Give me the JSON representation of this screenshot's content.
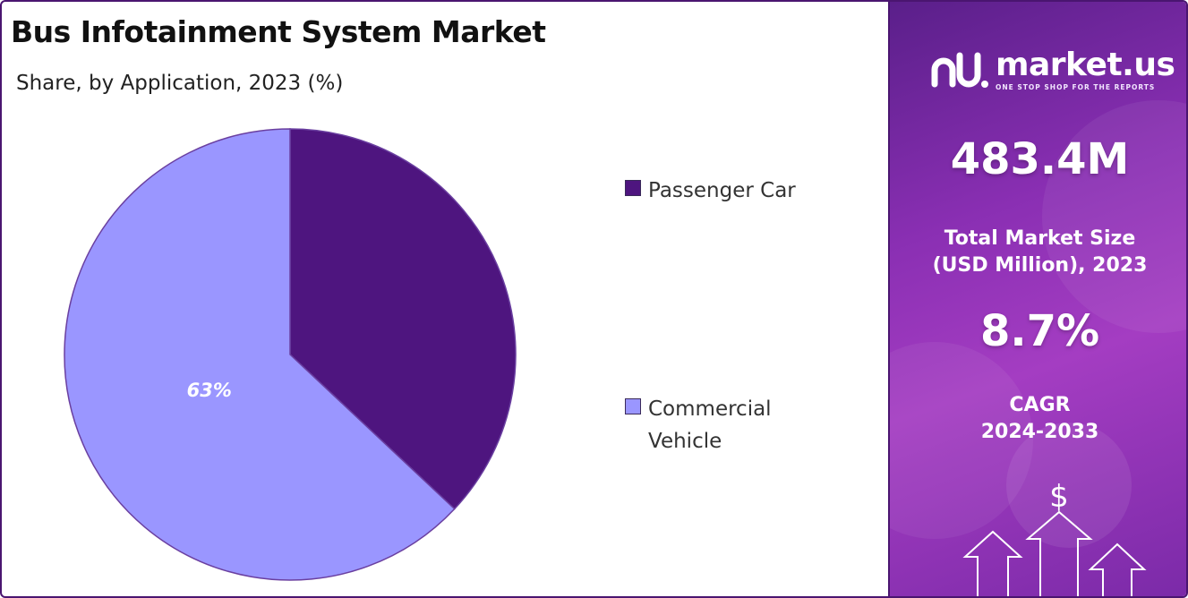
{
  "title": "Bus Infotainment System Market",
  "subtitle": "Share, by Application, 2023 (%)",
  "chart_data": {
    "type": "pie",
    "categories": [
      "Passenger Car",
      "Commercial Vehicle"
    ],
    "values": [
      37,
      63
    ],
    "data_labels": [
      "",
      "63%"
    ],
    "colors": [
      "#4e157f",
      "#9a96ff"
    ],
    "legend_position": "right"
  },
  "legend": {
    "items": [
      {
        "label": "Passenger Car",
        "color": "#4e157f"
      },
      {
        "label": "Commercial Vehicle",
        "color": "#9a96ff"
      }
    ]
  },
  "sidebar": {
    "logo": {
      "text": "market.us",
      "tagline": "ONE STOP SHOP FOR THE REPORTS"
    },
    "market_size": {
      "value": "483.4M",
      "caption_line1": "Total Market Size",
      "caption_line2": "(USD Million), 2023"
    },
    "cagr": {
      "value": "8.7%",
      "caption_line1": "CAGR",
      "caption_line2": "2024-2033"
    },
    "currency_symbol": "$",
    "icons": [
      "logo-icon",
      "dollar-icon",
      "arrow-up-icon"
    ]
  },
  "colors": {
    "frame": "#4a1570",
    "sidebar_gradient_start": "#5a1f8a",
    "sidebar_gradient_end": "#a43dc2"
  }
}
